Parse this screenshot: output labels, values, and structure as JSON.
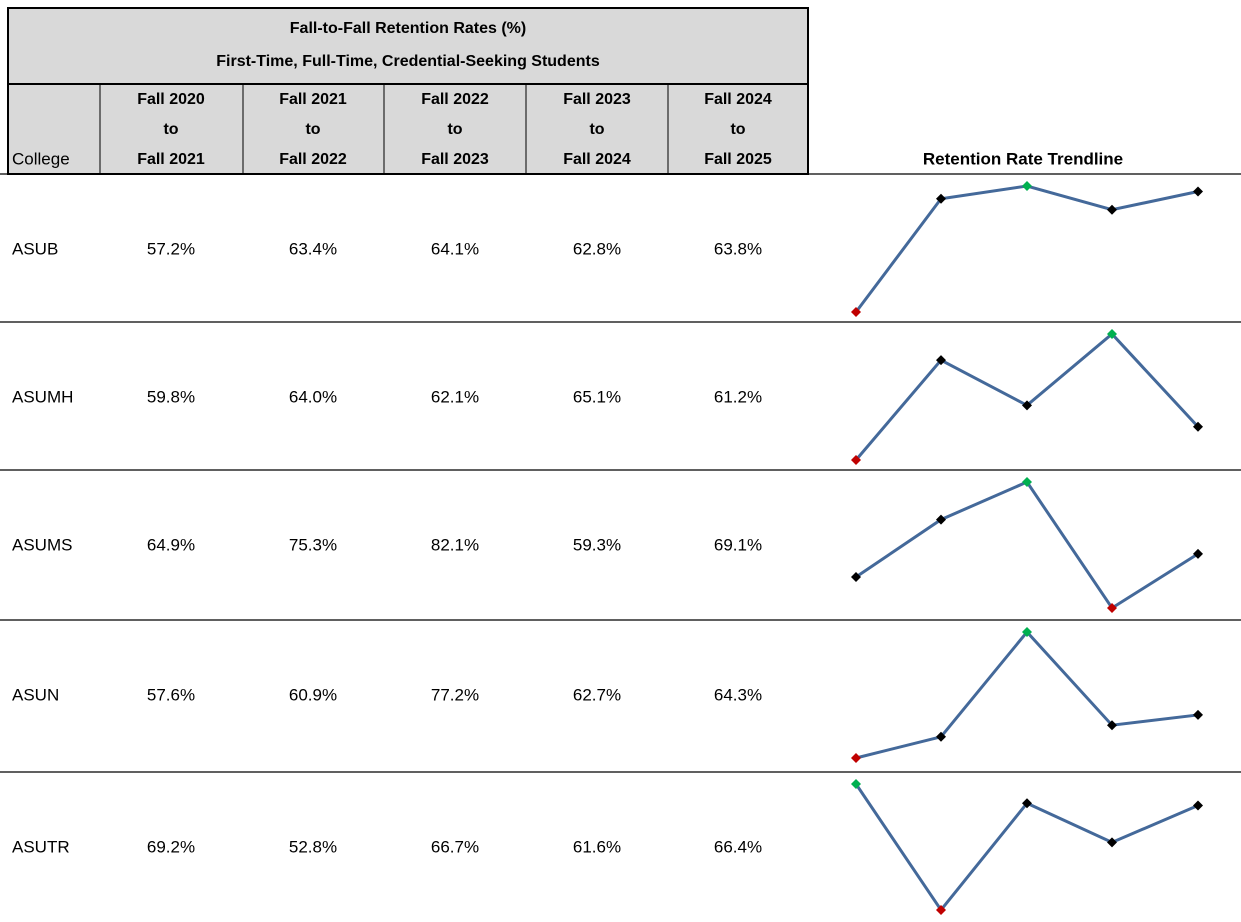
{
  "title": {
    "lines": [
      "Fall-to-Fall Retention Rates (%)",
      "First-Time, Full-Time, Credential-Seeking Students"
    ]
  },
  "table": {
    "college_header": "College",
    "columns": [
      [
        "Fall 2020",
        "to",
        "Fall 2021"
      ],
      [
        "Fall 2021",
        "to",
        "Fall 2022"
      ],
      [
        "Fall 2022",
        "to",
        "Fall 2023"
      ],
      [
        "Fall 2023",
        "to",
        "Fall 2024"
      ],
      [
        "Fall 2024",
        "to",
        "Fall 2025"
      ]
    ],
    "trend_header": "Retention Rate Trendline",
    "rows": [
      {
        "college": "ASUB",
        "values": [
          57.2,
          63.4,
          64.1,
          62.8,
          63.8
        ],
        "value_labels": [
          "57.2%",
          "63.4%",
          "64.1%",
          "62.8%",
          "63.8%"
        ]
      },
      {
        "college": "ASUMH",
        "values": [
          59.8,
          64.0,
          62.1,
          65.1,
          61.2
        ],
        "value_labels": [
          "59.8%",
          "64.0%",
          "62.1%",
          "65.1%",
          "61.2%"
        ]
      },
      {
        "college": "ASUMS",
        "values": [
          64.9,
          75.3,
          82.1,
          59.3,
          69.1
        ],
        "value_labels": [
          "64.9%",
          "75.3%",
          "82.1%",
          "59.3%",
          "69.1%"
        ]
      },
      {
        "college": "ASUN",
        "values": [
          57.6,
          60.9,
          77.2,
          62.7,
          64.3
        ],
        "value_labels": [
          "57.6%",
          "60.9%",
          "77.2%",
          "62.7%",
          "64.3%"
        ]
      },
      {
        "college": "ASUTR",
        "values": [
          69.2,
          52.8,
          66.7,
          61.6,
          66.4
        ],
        "value_labels": [
          "69.2%",
          "52.8%",
          "66.7%",
          "61.6%",
          "66.4%"
        ]
      }
    ]
  },
  "sparkline": {
    "line_color": "#44699a",
    "marker_color": "#000000",
    "high_color": "#00b050",
    "low_color": "#c00000"
  }
}
